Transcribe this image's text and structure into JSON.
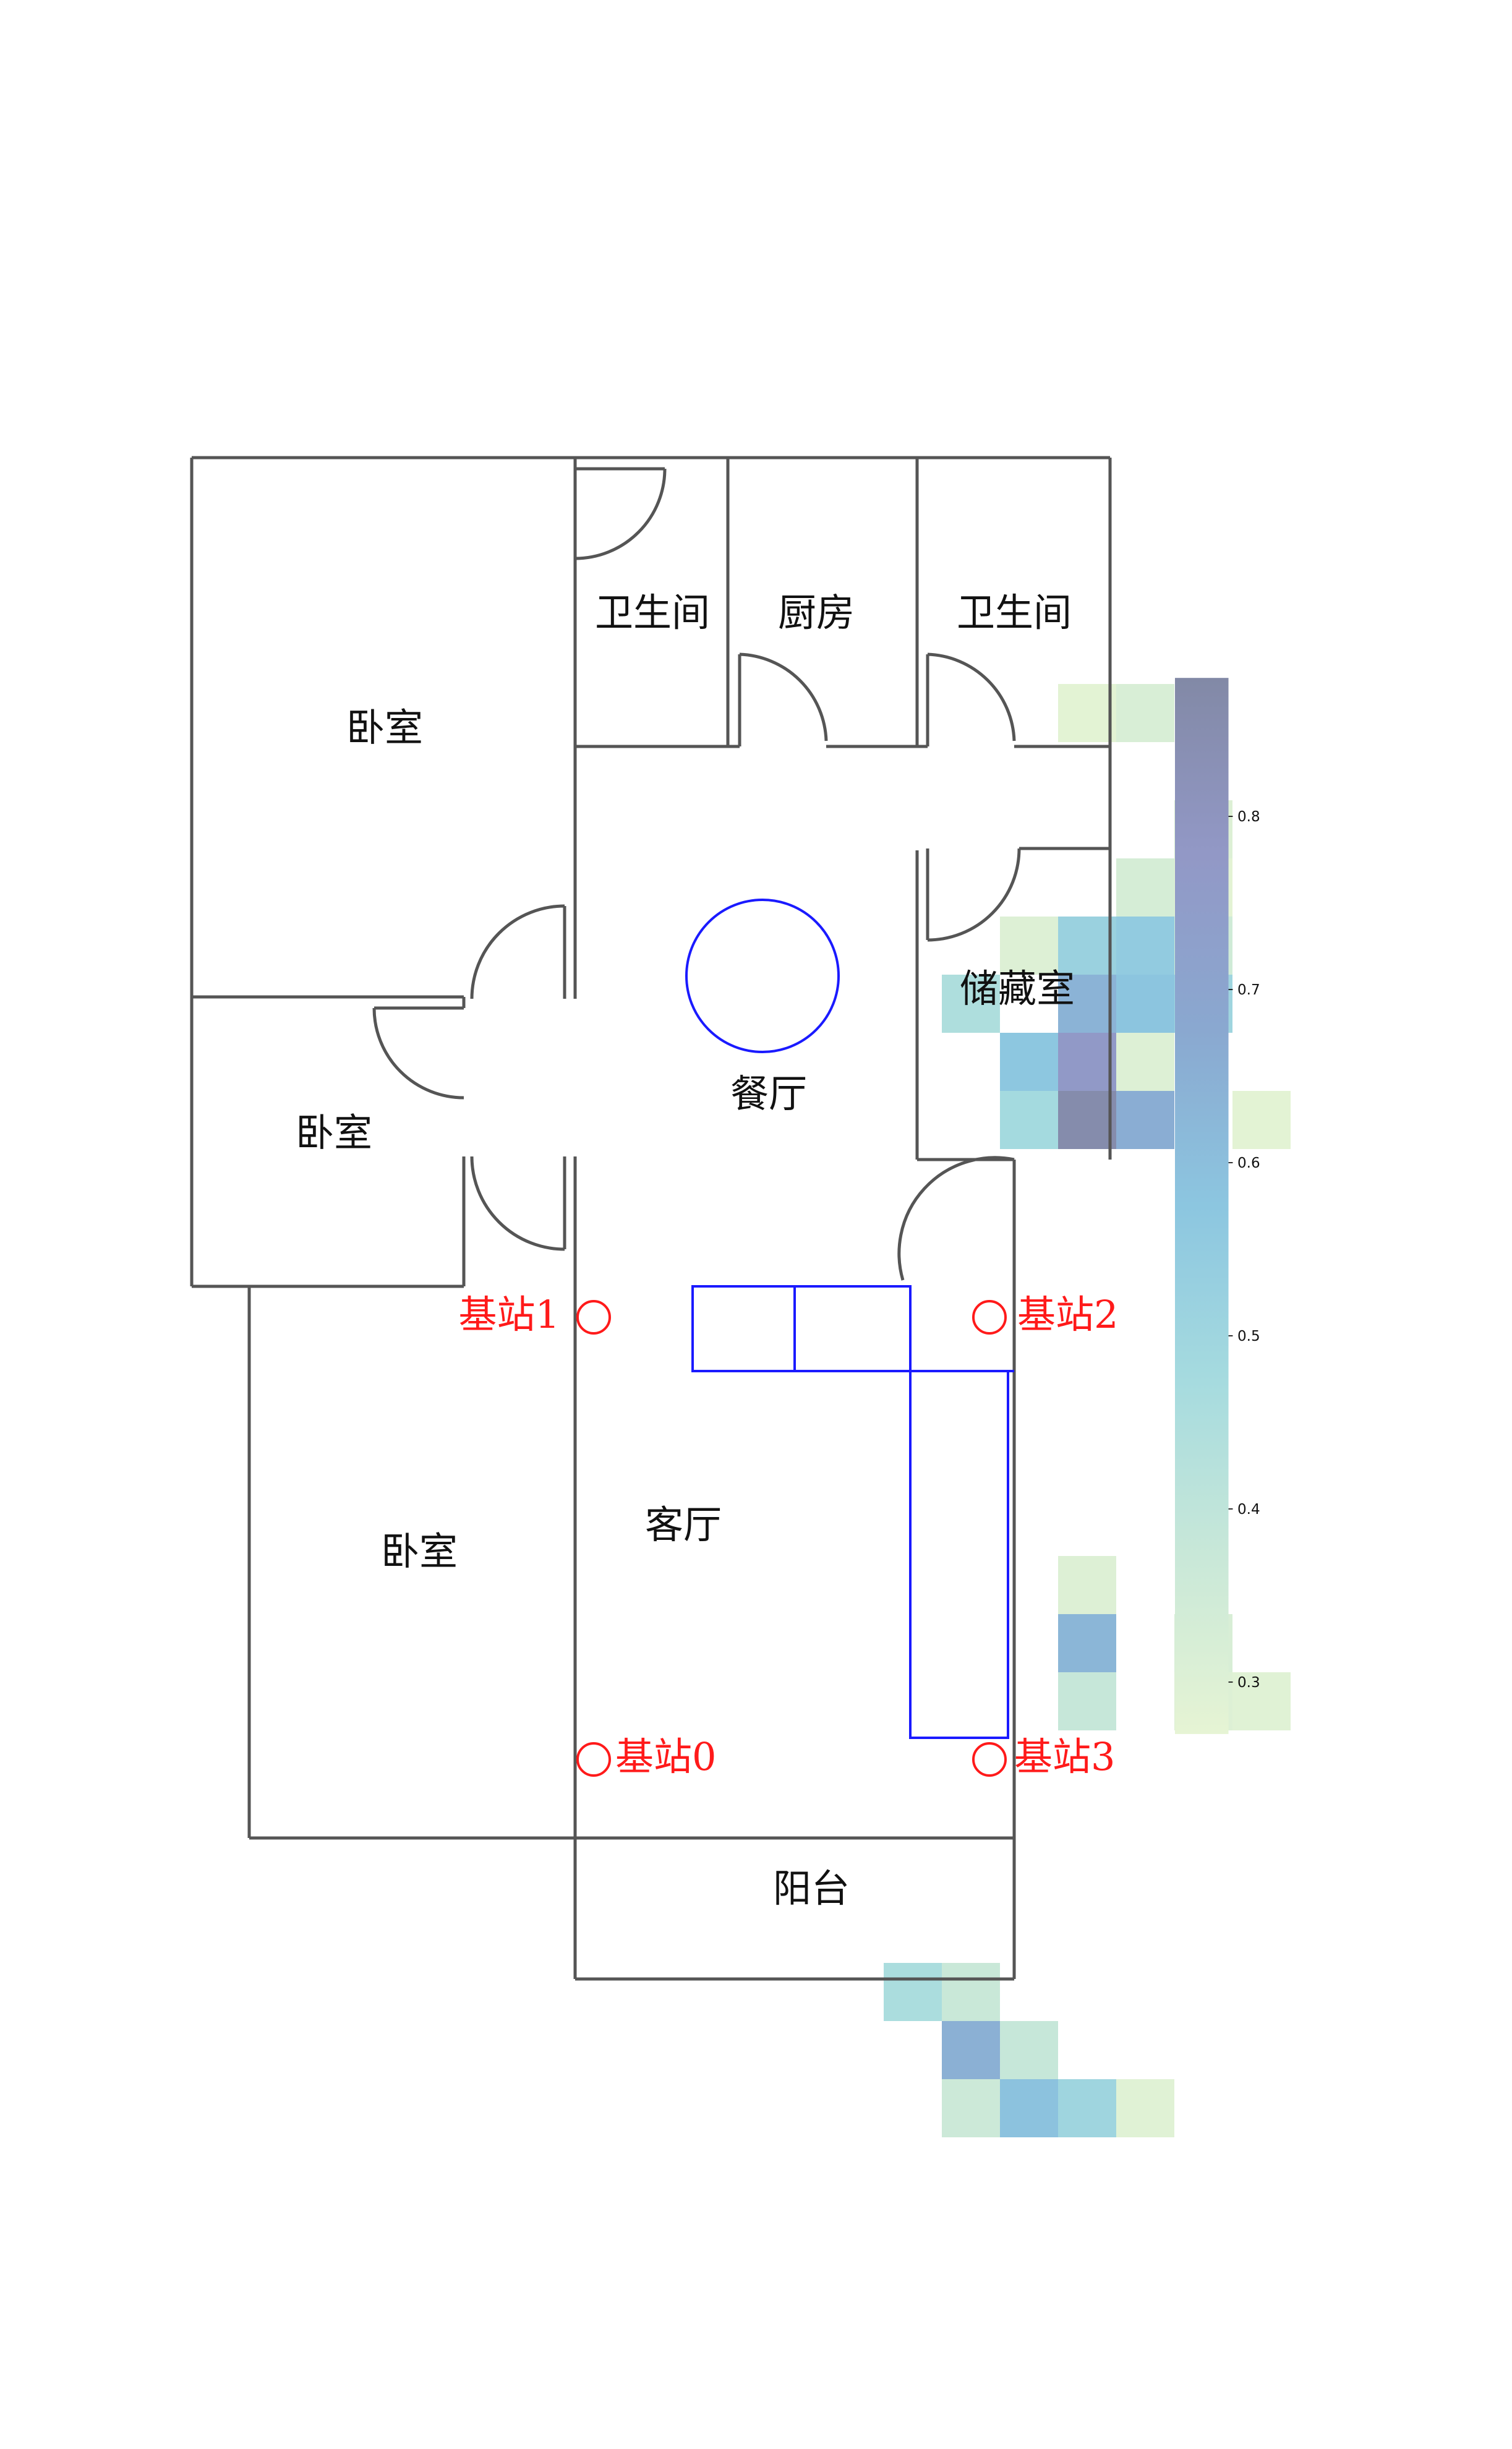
{
  "colors": {
    "wall": "#555555",
    "station": "#ff1a1a",
    "target": "#1a1aff",
    "cmap": [
      "#e6f4d4",
      "#c9e8d8",
      "#a6dbdf",
      "#8cc6e0",
      "#8aa8d0",
      "#9298c6",
      "#8289a6"
    ]
  },
  "rooms": [
    {
      "name": "卧室",
      "key": "bedroom-top"
    },
    {
      "name": "卫生间",
      "key": "bathroom-left"
    },
    {
      "name": "厨房",
      "key": "kitchen"
    },
    {
      "name": "卫生间",
      "key": "bathroom-right"
    },
    {
      "name": "储藏室",
      "key": "storage"
    },
    {
      "name": "卧室",
      "key": "bedroom-middle"
    },
    {
      "name": "餐厅",
      "key": "dining"
    },
    {
      "name": "卧室",
      "key": "bedroom-bottom"
    },
    {
      "name": "客厅",
      "key": "living"
    },
    {
      "name": "阳台",
      "key": "balcony"
    }
  ],
  "stations": [
    {
      "label": "基站0"
    },
    {
      "label": "基站1"
    },
    {
      "label": "基站2"
    },
    {
      "label": "基站3"
    }
  ],
  "chart_data": {
    "type": "heatmap",
    "colorbar": {
      "range": [
        0.27,
        0.88
      ],
      "ticks": [
        "0.3",
        "0.4",
        "0.5",
        "0.6",
        "0.7",
        "0.8"
      ],
      "tick_values": [
        0.3,
        0.4,
        0.5,
        0.6,
        0.7,
        0.8
      ]
    },
    "cells": [
      {
        "col": 9,
        "row": 2,
        "value": 0.28
      },
      {
        "col": 10,
        "row": 2,
        "value": 0.32
      },
      {
        "col": 11,
        "row": 4,
        "value": 0.3
      },
      {
        "col": 10,
        "row": 5,
        "value": 0.33
      },
      {
        "col": 11,
        "row": 5,
        "value": 0.28
      },
      {
        "col": 8,
        "row": 6,
        "value": 0.3
      },
      {
        "col": 9,
        "row": 6,
        "value": 0.52
      },
      {
        "col": 10,
        "row": 6,
        "value": 0.55
      },
      {
        "col": 11,
        "row": 6,
        "value": 0.35
      },
      {
        "col": 7,
        "row": 7,
        "value": 0.45
      },
      {
        "col": 9,
        "row": 7,
        "value": 0.64
      },
      {
        "col": 10,
        "row": 7,
        "value": 0.58
      },
      {
        "col": 11,
        "row": 7,
        "value": 0.5
      },
      {
        "col": 8,
        "row": 8,
        "value": 0.57
      },
      {
        "col": 9,
        "row": 8,
        "value": 0.77
      },
      {
        "col": 10,
        "row": 8,
        "value": 0.3
      },
      {
        "col": 8,
        "row": 9,
        "value": 0.48
      },
      {
        "col": 9,
        "row": 9,
        "value": 0.86
      },
      {
        "col": 10,
        "row": 9,
        "value": 0.66
      },
      {
        "col": 12,
        "row": 9,
        "value": 0.28
      },
      {
        "col": 9,
        "row": 17,
        "value": 0.3
      },
      {
        "col": 9,
        "row": 18,
        "value": 0.63
      },
      {
        "col": 11,
        "row": 18,
        "value": 0.32
      },
      {
        "col": 9,
        "row": 19,
        "value": 0.38
      },
      {
        "col": 11,
        "row": 19,
        "value": 0.3
      },
      {
        "col": 12,
        "row": 19,
        "value": 0.29
      },
      {
        "col": 6,
        "row": 24,
        "value": 0.46
      },
      {
        "col": 7,
        "row": 24,
        "value": 0.37
      },
      {
        "col": 7,
        "row": 25,
        "value": 0.65
      },
      {
        "col": 8,
        "row": 25,
        "value": 0.38
      },
      {
        "col": 7,
        "row": 26,
        "value": 0.36
      },
      {
        "col": 8,
        "row": 26,
        "value": 0.59
      },
      {
        "col": 9,
        "row": 26,
        "value": 0.5
      },
      {
        "col": 10,
        "row": 26,
        "value": 0.29
      }
    ]
  }
}
